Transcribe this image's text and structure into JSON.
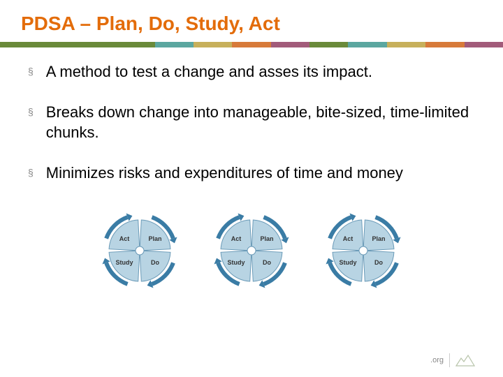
{
  "title": "PDSA – Plan, Do, Study, Act",
  "stripe_colors": [
    "#6a8a3a",
    "#6a8a3a",
    "#5ba7a0",
    "#c7b05b",
    "#d77a3a",
    "#a25b7a",
    "#6a8a3a",
    "#5ba7a0",
    "#c7b05b",
    "#d77a3a",
    "#a25b7a"
  ],
  "bullets": [
    "A method to test a change and asses its impact.",
    "Breaks down change into manageable,   bite-sized, time-limited chunks.",
    " Minimizes risks and expenditures of time and money"
  ],
  "cycle": {
    "quadrants": [
      "Act",
      "Plan",
      "Study",
      "Do"
    ],
    "quadrant_fill": "#b8d4e3",
    "quadrant_stroke": "#6b9bb8",
    "arrow_fill": "#3a7ca5",
    "label_color": "#333333",
    "label_fontsize": 9,
    "count": 3,
    "connector_color": "#3a7ca5"
  },
  "footer": {
    "text": ".org",
    "logo_stroke": "#b8c4aa"
  }
}
